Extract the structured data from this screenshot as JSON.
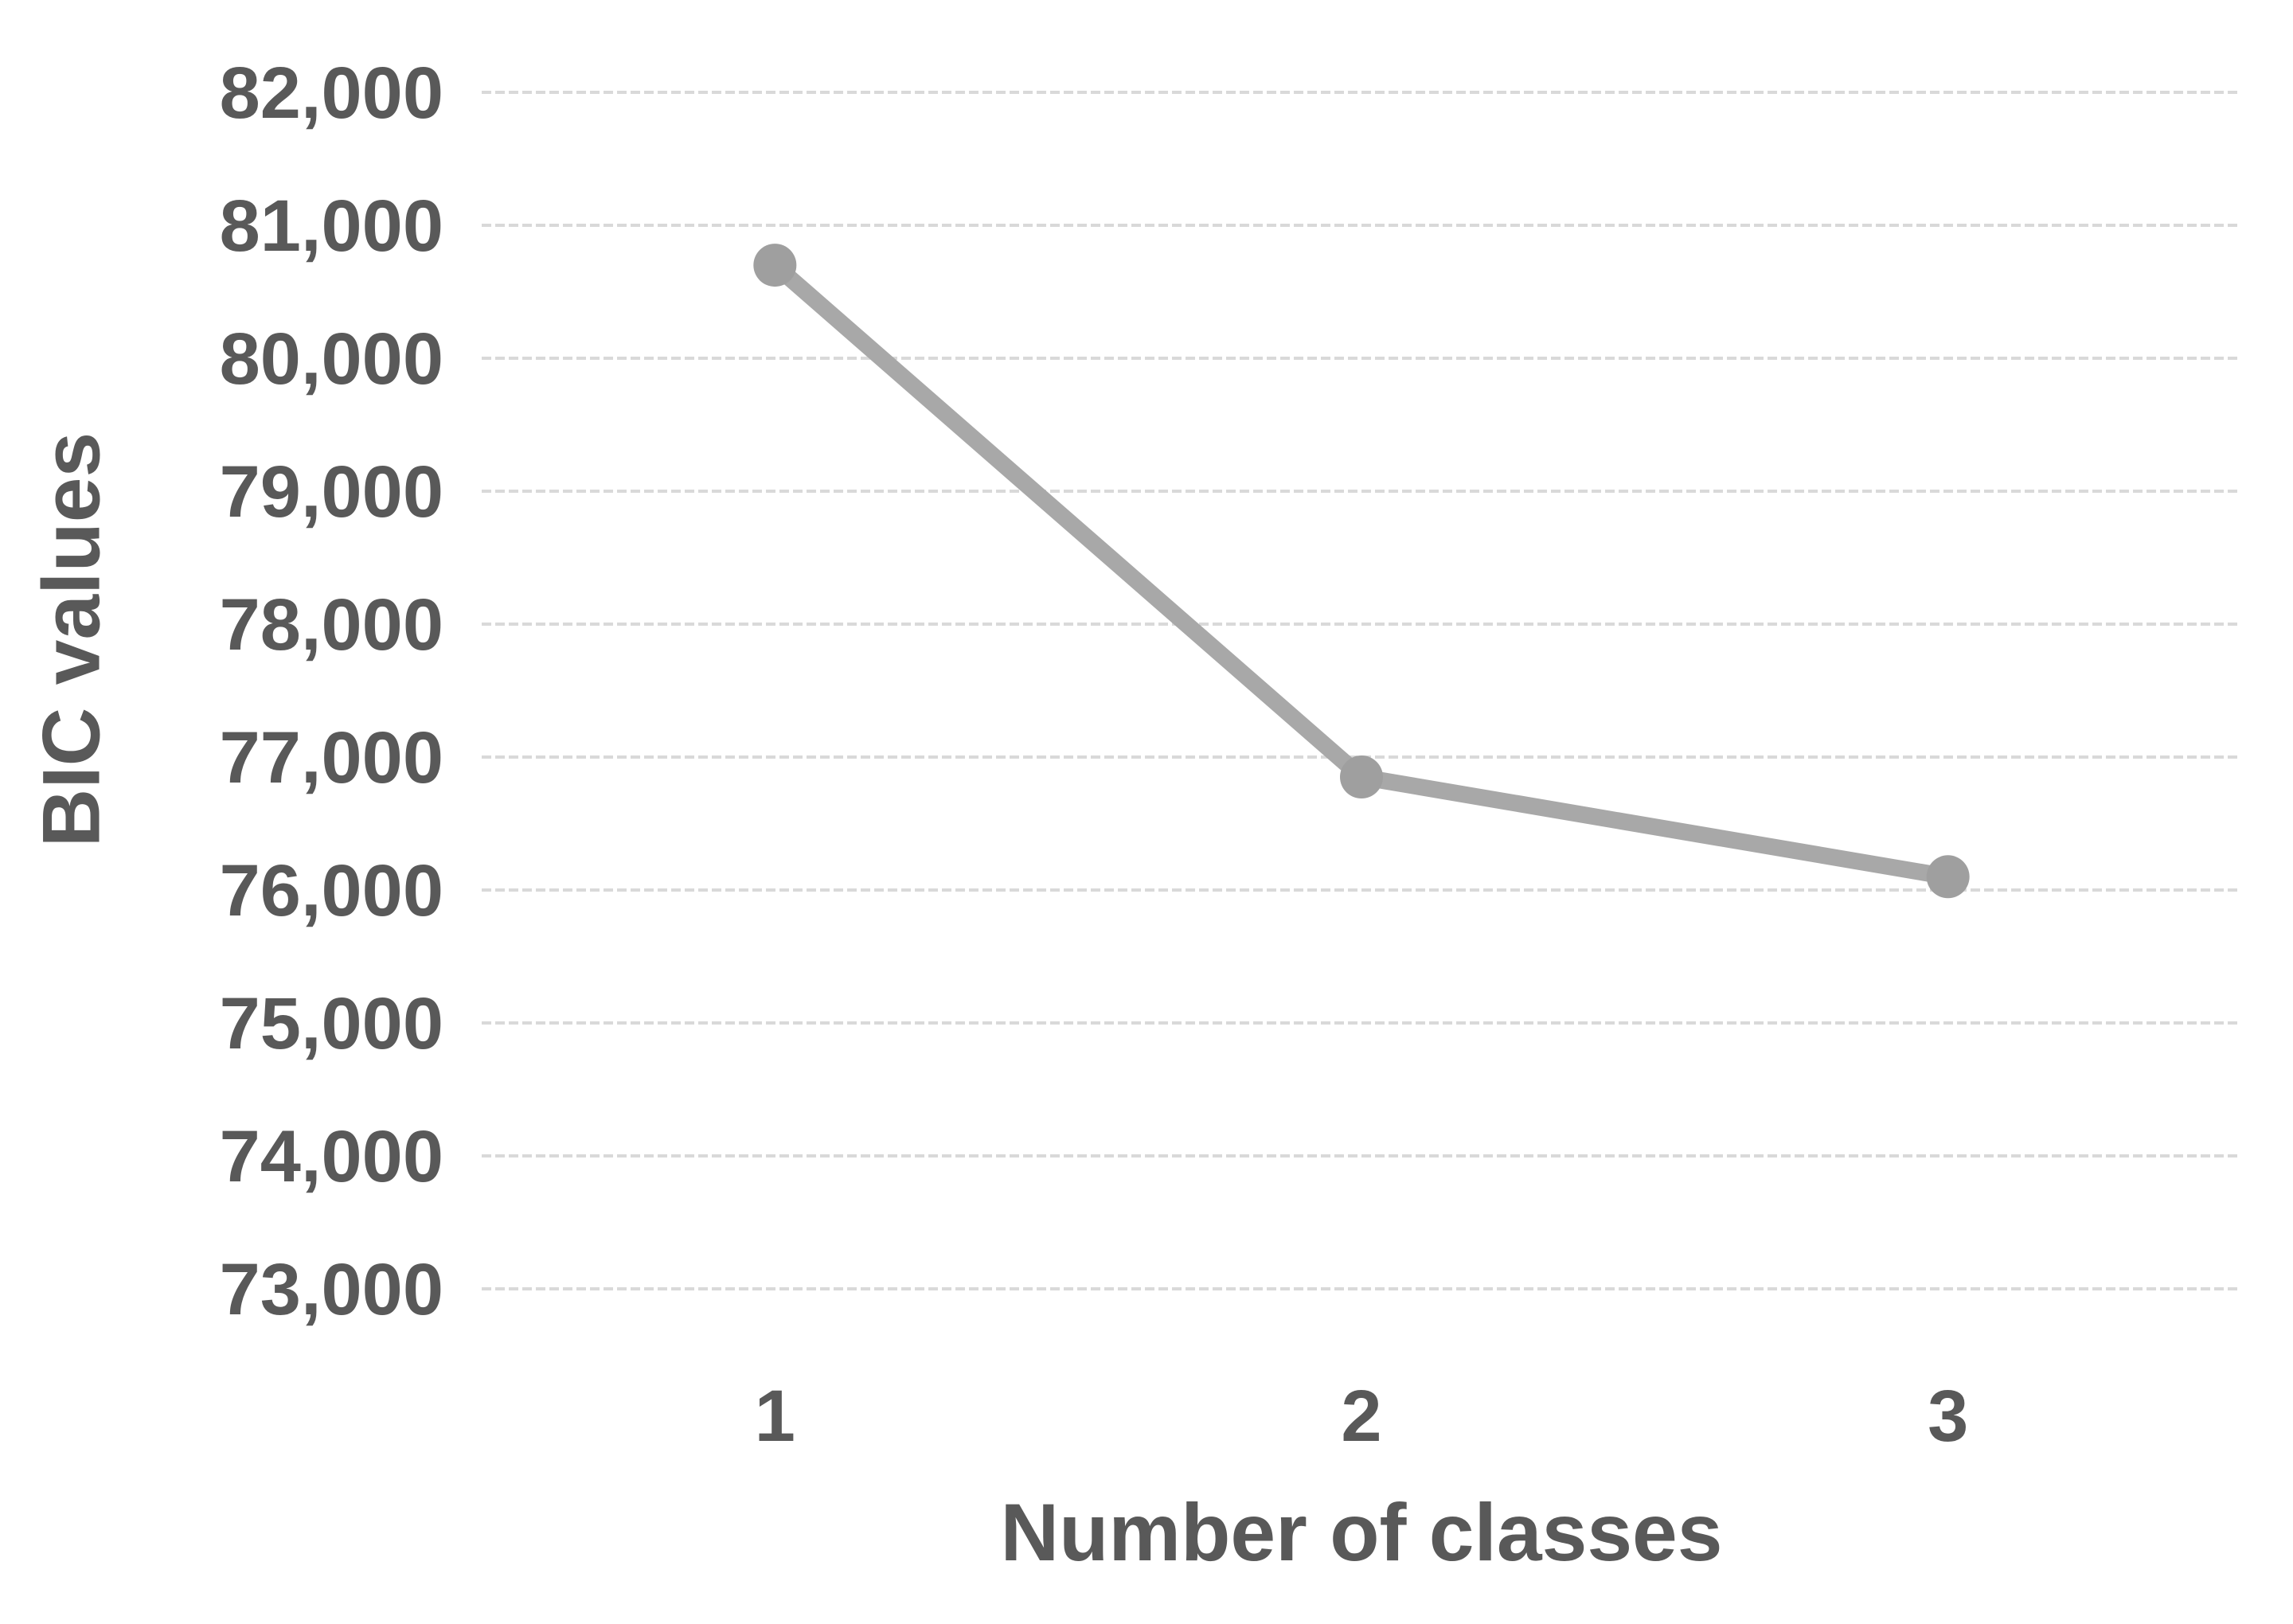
{
  "chart": {
    "colors": {
      "line": "#a8a8a8",
      "marker": "#9f9f9f",
      "gridline": "#d9d9d9",
      "text": "#595959",
      "background": "#ffffff"
    }
  },
  "chart_data": {
    "type": "line",
    "title": "",
    "categories": [
      "1",
      "2",
      "3"
    ],
    "series": [
      {
        "name": "BIC",
        "values": [
          80700,
          76850,
          76100
        ]
      }
    ],
    "xlabel": "Number of classes",
    "ylabel": "BIC values",
    "ylim": [
      73000,
      82000
    ],
    "y_tick_step": 1000,
    "y_ticks": [
      82000,
      81000,
      80000,
      79000,
      78000,
      77000,
      76000,
      75000,
      74000,
      73000
    ],
    "grid": "horizontal-dashed",
    "legend": "none",
    "marker": "circle"
  }
}
